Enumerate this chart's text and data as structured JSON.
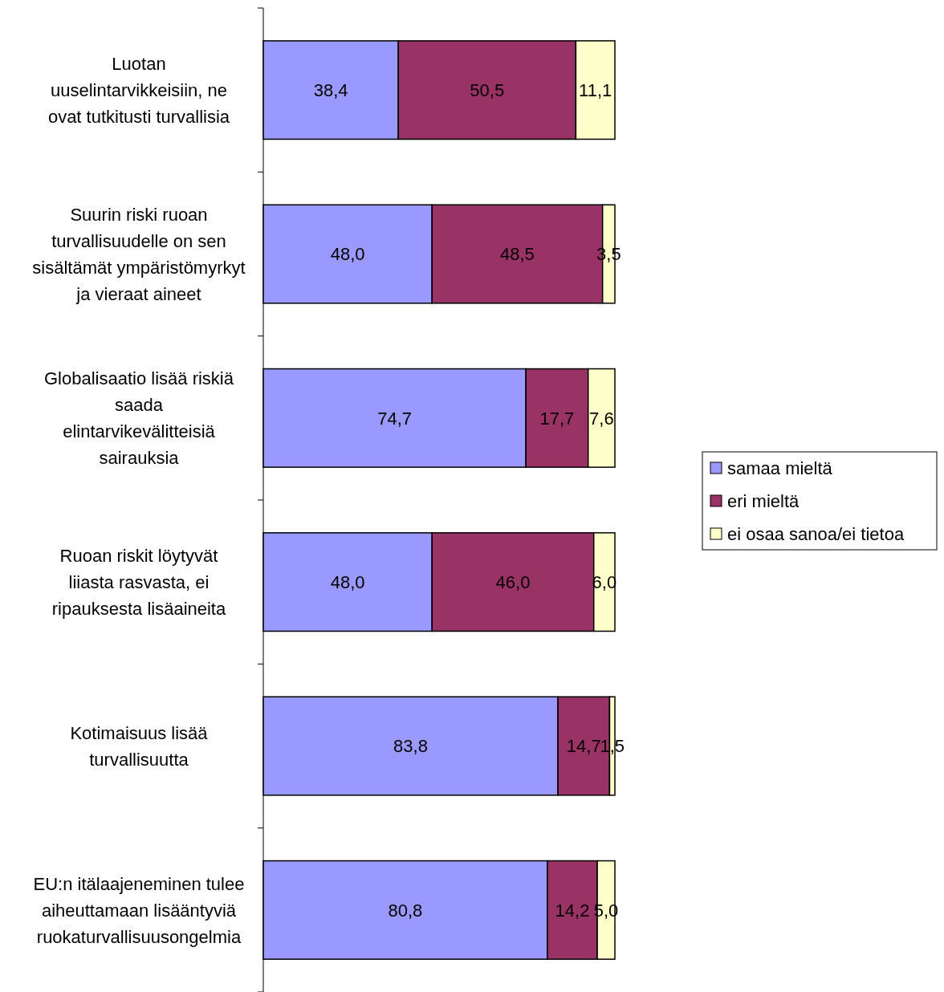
{
  "chart_data": {
    "type": "bar",
    "orientation": "horizontal",
    "stacked": true,
    "legend": "right",
    "tick_labels": "y",
    "categories": [
      "Luotan uuselintarvikkeisiin, ne ovat tutkitusti turvallisia",
      "Suurin riski ruoan turvallisuudelle on sen sisältämät ympäristömyrkyt ja vieraat aineet",
      "Globalisaatio lisää riskiä saada elintarvikevälitteisiä sairauksia",
      "Ruoan riskit löytyvät liiasta rasvasta, ei ripauksesta lisäaineita",
      "Kotimaisuus lisää turvallisuutta",
      "EU:n itälaajeneminen tulee aiheuttamaan lisääntyviä ruokaturvallisuusongelmia"
    ],
    "series": [
      {
        "name": "samaa mieltä",
        "color": "#9999ff",
        "values": [
          38.4,
          48.0,
          74.7,
          48.0,
          83.8,
          80.8
        ],
        "value_labels": [
          "38,4",
          "48,0",
          "74,7",
          "48,0",
          "83,8",
          "80,8"
        ]
      },
      {
        "name": "eri mieltä",
        "color": "#993366",
        "values": [
          50.5,
          48.5,
          17.7,
          46.0,
          14.7,
          14.2
        ],
        "value_labels": [
          "50,5",
          "48,5",
          "17,7",
          "46,0",
          "14,7",
          "14,2"
        ]
      },
      {
        "name": "ei osaa sanoa/ei tietoa",
        "color": "#ffffcc",
        "values": [
          11.1,
          3.5,
          7.6,
          6.0,
          1.5,
          5.0
        ],
        "value_labels": [
          "11,1",
          "3,5",
          "7,6",
          "6,0",
          "1,5",
          "5,0"
        ]
      }
    ]
  }
}
